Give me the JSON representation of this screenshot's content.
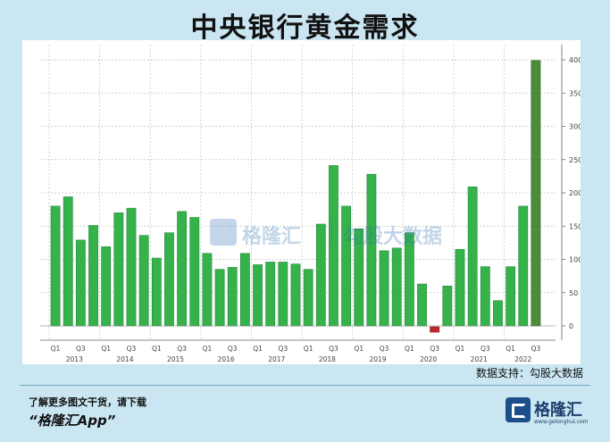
{
  "title": "中央银行黄金需求",
  "source": "数据支持：勾股大数据",
  "footer": {
    "hint": "了解更多图文干货，请下载",
    "app": "“格隆汇App”",
    "logo_text": "格隆汇",
    "logo_url": "www.gelonghui.com"
  },
  "watermark": {
    "brand": "格隆汇",
    "brand2": "勾股大数据"
  },
  "colors": {
    "bar": "#35b34a",
    "bar_edge": "#23863a",
    "negative_bar": "#c0262c",
    "last_bar": "#4a8c3a",
    "grid": "#b9c7b9",
    "background": "#c9e6f2"
  },
  "chart_data": {
    "type": "bar",
    "title": "中央银行黄金需求",
    "xlabel": "",
    "ylabel": "",
    "ylim": [
      -10,
      400
    ],
    "yticks": [
      0,
      50,
      100,
      150,
      200,
      250,
      300,
      350,
      400
    ],
    "y_axis_side": "right",
    "grid": true,
    "legend": "none",
    "quarters": [
      "Q1",
      "Q2",
      "Q3",
      "Q4",
      "Q1",
      "Q2",
      "Q3",
      "Q4",
      "Q1",
      "Q2",
      "Q3",
      "Q4",
      "Q1",
      "Q2",
      "Q3",
      "Q4",
      "Q1",
      "Q2",
      "Q3",
      "Q4",
      "Q1",
      "Q2",
      "Q3",
      "Q4",
      "Q1",
      "Q2",
      "Q3",
      "Q4",
      "Q1",
      "Q2",
      "Q3",
      "Q4",
      "Q1",
      "Q2",
      "Q3",
      "Q4",
      "Q1",
      "Q2",
      "Q3"
    ],
    "tick_labels": [
      "Q1",
      "",
      "Q3",
      "",
      "Q1",
      "",
      "Q3",
      "",
      "Q1",
      "",
      "Q3",
      "",
      "Q1",
      "",
      "Q3",
      "",
      "Q1",
      "",
      "Q3",
      "",
      "Q1",
      "",
      "Q3",
      "",
      "Q1",
      "",
      "Q3",
      "",
      "Q1",
      "",
      "Q3",
      "",
      "Q1",
      "",
      "Q3",
      "",
      "Q1",
      "",
      "Q3"
    ],
    "years": [
      "2013",
      "2014",
      "2015",
      "2016",
      "2017",
      "2018",
      "2019",
      "2020",
      "2021",
      "2022"
    ],
    "values": [
      180,
      194,
      129,
      151,
      119,
      170,
      177,
      136,
      102,
      140,
      172,
      163,
      109,
      85,
      88,
      109,
      92,
      96,
      96,
      93,
      85,
      153,
      241,
      180,
      146,
      228,
      113,
      117,
      140,
      63,
      -6,
      60,
      115,
      209,
      89,
      38,
      89,
      180,
      399
    ]
  }
}
